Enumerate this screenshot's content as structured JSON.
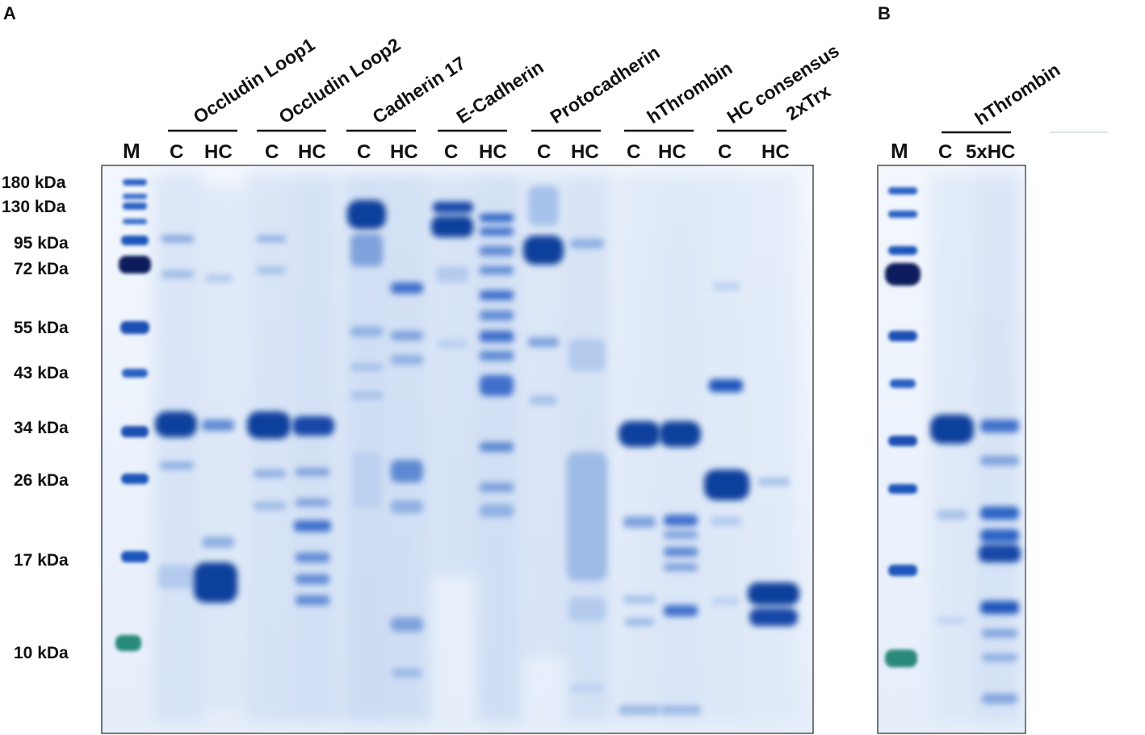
{
  "panels": {
    "A": {
      "letter": "A",
      "marker_lane": "M",
      "markers": [
        {
          "label": "180 kDa"
        },
        {
          "label": "130 kDa"
        },
        {
          "label": "95 kDa"
        },
        {
          "label": "72 kDa"
        },
        {
          "label": "55 kDa"
        },
        {
          "label": "43 kDa"
        },
        {
          "label": "34 kDa"
        },
        {
          "label": "26 kDa"
        },
        {
          "label": "17 kDa"
        },
        {
          "label": "10 kDa"
        }
      ],
      "groups": [
        {
          "title": "Occludin Loop1",
          "lanes": [
            "C",
            "HC"
          ]
        },
        {
          "title": "Occludin Loop2",
          "lanes": [
            "C",
            "HC"
          ]
        },
        {
          "title": "Cadherin 17",
          "lanes": [
            "C",
            "HC"
          ]
        },
        {
          "title": "E-Cadherin",
          "lanes": [
            "C",
            "HC"
          ]
        },
        {
          "title": "Protocadherin",
          "lanes": [
            "C",
            "HC"
          ]
        },
        {
          "title": "hThrombin",
          "lanes": [
            "C",
            "HC"
          ]
        },
        {
          "title": "HC consensus",
          "title2": "2xTrx",
          "lanes": [
            "C",
            "HC"
          ]
        }
      ]
    },
    "B": {
      "letter": "B",
      "marker_lane": "M",
      "groups": [
        {
          "title": "hThrombin",
          "lanes": [
            "C",
            "5xHC"
          ]
        }
      ]
    }
  },
  "colors": {
    "gel_background": "#e9f1fb",
    "band_dark": "#0c3f9c",
    "band_mid": "#2a62c4",
    "band_light": "#9dbbe6",
    "marker_dark": "#0b1f5c",
    "marker_green": "#2a8a7a"
  }
}
